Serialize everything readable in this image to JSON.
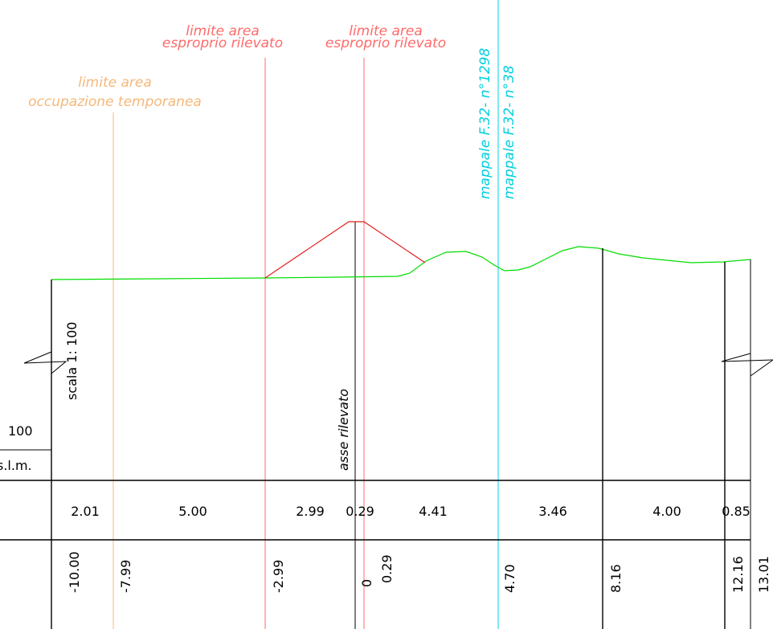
{
  "colors": {
    "background": "#ffffff",
    "ground_line": "#00dd00",
    "embankment": "#e02020",
    "expropriation_limit": "#ff6a6a",
    "temporary_occupation_limit": "#f5b87a",
    "parcel_line": "#00d0e0",
    "frame": "#000000"
  },
  "labels": {
    "temp_limit_line1": "limite area",
    "temp_limit_line2": "occupazione temporanea",
    "expr1_line1": "limite area",
    "expr1_line2": "esproprio rilevato",
    "expr2_line1": "limite area",
    "expr2_line2": "esproprio rilevato",
    "parcel1": "mappale F.32- n°1298",
    "parcel2": "mappale F.32- n°38",
    "scale": "scala 1: 100",
    "axis": "asse rilevato",
    "scale_left": "100",
    "slm": "s.l.m."
  },
  "partial_distances": [
    "2.01",
    "5.00",
    "2.99",
    "0.29",
    "4.41",
    "3.46",
    "4.00",
    "0.85"
  ],
  "progressive_distances": [
    "-10.00",
    "-7.99",
    "-2.99",
    "0",
    "0.29",
    "4.70",
    "8.16",
    "12.16",
    "13.01"
  ]
}
